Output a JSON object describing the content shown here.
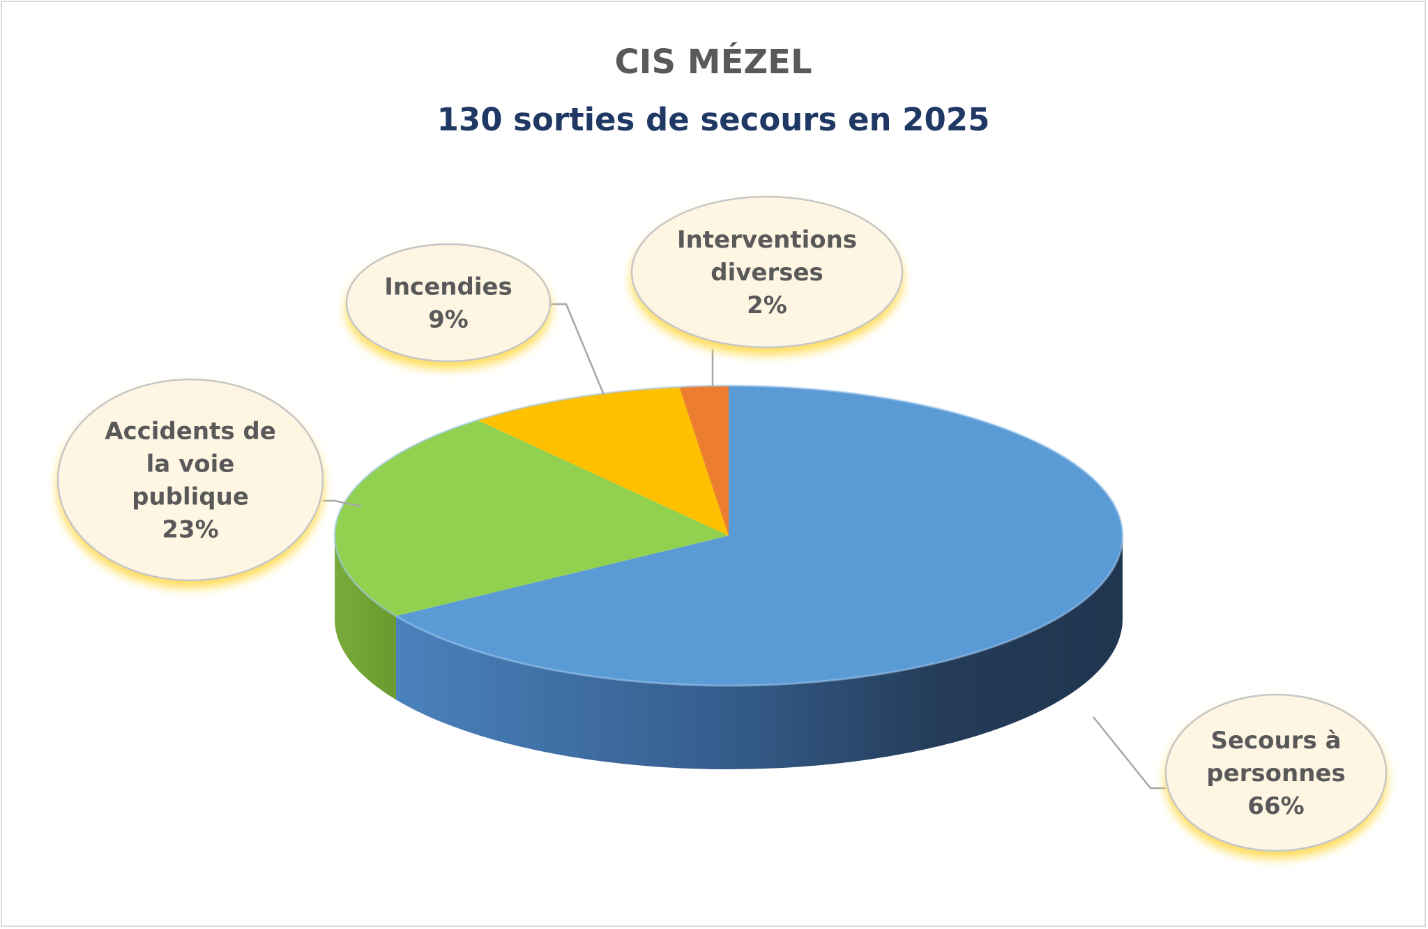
{
  "chart_data": {
    "type": "pie",
    "title": "CIS MÉZEL",
    "subtitle": "130 sorties de secours en 2025",
    "three_d": true,
    "slices": [
      {
        "label": "Secours à personnes",
        "percent_label": "66%",
        "value": 66,
        "color": "#5b9bd5"
      },
      {
        "label": "Accidents de la voie publique",
        "percent_label": "23%",
        "value": 23,
        "color": "#92d050"
      },
      {
        "label": "Incendies",
        "percent_label": "9%",
        "value": 9,
        "color": "#ffc000"
      },
      {
        "label": "Interventions diverses",
        "percent_label": "2%",
        "value": 2,
        "color": "#ed7d31"
      }
    ]
  }
}
